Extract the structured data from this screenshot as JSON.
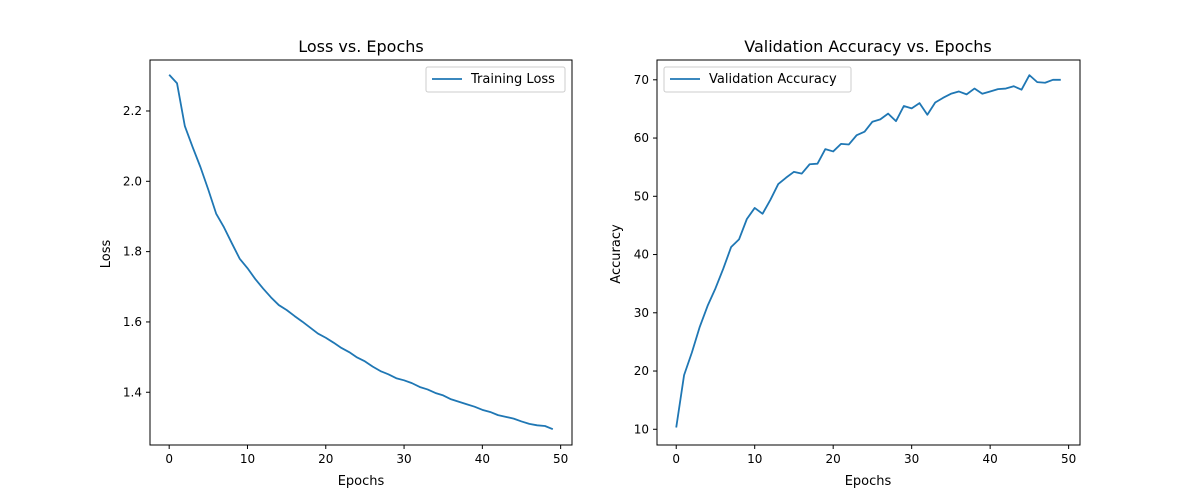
{
  "chart_data": [
    {
      "type": "line",
      "title": "Loss vs. Epochs",
      "xlabel": "Epochs",
      "ylabel": "Loss",
      "xlim": [
        -2.45,
        51.45
      ],
      "ylim": [
        1.25,
        2.345
      ],
      "xticks": [
        0,
        10,
        20,
        30,
        40,
        50
      ],
      "yticks": [
        1.4,
        1.6,
        1.8,
        2.0,
        2.2
      ],
      "xtick_labels": [
        "0",
        "10",
        "20",
        "30",
        "40",
        "50"
      ],
      "ytick_labels": [
        "1.4",
        "1.6",
        "1.8",
        "2.0",
        "2.2"
      ],
      "grid": false,
      "legend": "top-right",
      "color": "#1f77b4",
      "series": [
        {
          "name": "Training Loss",
          "x": [
            0,
            1,
            2,
            3,
            4,
            5,
            6,
            7,
            8,
            9,
            10,
            11,
            12,
            13,
            14,
            15,
            16,
            17,
            18,
            19,
            20,
            21,
            22,
            23,
            24,
            25,
            26,
            27,
            28,
            29,
            30,
            31,
            32,
            33,
            34,
            35,
            36,
            37,
            38,
            39,
            40,
            41,
            42,
            43,
            44,
            45,
            46,
            47,
            48,
            49
          ],
          "y": [
            2.303,
            2.279,
            2.157,
            2.097,
            2.04,
            1.976,
            1.908,
            1.869,
            1.824,
            1.78,
            1.753,
            1.722,
            1.695,
            1.67,
            1.648,
            1.634,
            1.617,
            1.601,
            1.584,
            1.567,
            1.555,
            1.541,
            1.526,
            1.514,
            1.499,
            1.488,
            1.473,
            1.46,
            1.451,
            1.44,
            1.434,
            1.426,
            1.415,
            1.408,
            1.398,
            1.391,
            1.38,
            1.373,
            1.366,
            1.359,
            1.35,
            1.344,
            1.335,
            1.33,
            1.325,
            1.317,
            1.31,
            1.306,
            1.304,
            1.295
          ]
        }
      ]
    },
    {
      "type": "line",
      "title": "Validation Accuracy vs. Epochs",
      "xlabel": "Epochs",
      "ylabel": "Accuracy",
      "xlim": [
        -2.45,
        51.45
      ],
      "ylim": [
        7.3,
        73.4
      ],
      "xticks": [
        0,
        10,
        20,
        30,
        40,
        50
      ],
      "yticks": [
        10,
        20,
        30,
        40,
        50,
        60,
        70
      ],
      "xtick_labels": [
        "0",
        "10",
        "20",
        "30",
        "40",
        "50"
      ],
      "ytick_labels": [
        "10",
        "20",
        "30",
        "40",
        "50",
        "60",
        "70"
      ],
      "grid": false,
      "legend": "top-left",
      "color": "#1f77b4",
      "series": [
        {
          "name": "Validation Accuracy",
          "x": [
            0,
            1,
            2,
            3,
            4,
            5,
            6,
            7,
            8,
            9,
            10,
            11,
            12,
            13,
            14,
            15,
            16,
            17,
            18,
            19,
            20,
            21,
            22,
            23,
            24,
            25,
            26,
            27,
            28,
            29,
            30,
            31,
            32,
            33,
            34,
            35,
            36,
            37,
            38,
            39,
            40,
            41,
            42,
            43,
            44,
            45,
            46,
            47,
            48,
            49
          ],
          "y": [
            10.3,
            19.3,
            23.2,
            27.6,
            31.2,
            34.2,
            37.6,
            41.3,
            42.6,
            46.1,
            48.0,
            47.0,
            49.4,
            52.1,
            53.2,
            54.2,
            53.9,
            55.5,
            55.6,
            58.1,
            57.7,
            59.0,
            58.9,
            60.5,
            61.1,
            62.8,
            63.2,
            64.2,
            62.9,
            65.5,
            65.1,
            66.0,
            64.0,
            66.1,
            66.9,
            67.6,
            68.0,
            67.5,
            68.5,
            67.6,
            68.0,
            68.4,
            68.5,
            68.9,
            68.3,
            70.8,
            69.6,
            69.5,
            70.0,
            70.0
          ]
        }
      ]
    }
  ]
}
